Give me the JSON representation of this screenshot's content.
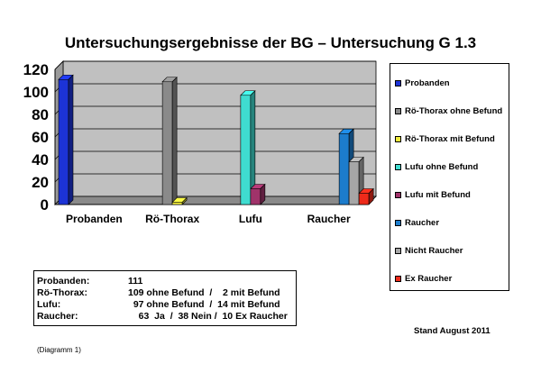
{
  "chart_data": {
    "type": "bar",
    "title": "Untersuchungsergebnisse der BG – Untersuchung G 1.3",
    "categories": [
      "Probanden",
      "Rö-Thorax",
      "Lufu",
      "Raucher"
    ],
    "ylim": [
      0,
      120
    ],
    "yticks": [
      "0",
      "20",
      "40",
      "60",
      "80",
      "100",
      "120"
    ],
    "grid": true,
    "legend_position": "right",
    "series": [
      {
        "name": "Probanden",
        "color": "#1c33d6",
        "category": 0,
        "value": 111
      },
      {
        "name": "Rö-Thorax ohne Befund",
        "color": "#8a8a8a",
        "category": 1,
        "value": 109
      },
      {
        "name": "Rö-Thorax mit Befund",
        "color": "#f1ec3c",
        "category": 1,
        "value": 2
      },
      {
        "name": "Lufu ohne Befund",
        "color": "#3fdcd0",
        "category": 2,
        "value": 97
      },
      {
        "name": "Lufu mit Befund",
        "color": "#a0336a",
        "category": 2,
        "value": 14
      },
      {
        "name": "Raucher",
        "color": "#1c7ccc",
        "category": 3,
        "value": 63
      },
      {
        "name": "Nicht Raucher",
        "color": "#a6a6a6",
        "category": 3,
        "value": 38
      },
      {
        "name": "Ex Raucher",
        "color": "#ee2a1a",
        "category": 3,
        "value": 10
      }
    ]
  },
  "info_box": {
    "rows": [
      {
        "label": "Probanden:",
        "value": "111"
      },
      {
        "label": "Rö-Thorax:",
        "value": "109 ohne Befund  /    2 mit Befund"
      },
      {
        "label": "Lufu:",
        "value": "  97 ohne Befund  /  14 mit Befund"
      },
      {
        "label": "Raucher:",
        "value": "    63  Ja  /  38 Nein /  10 Ex Raucher"
      }
    ]
  },
  "stand": "Stand August 2011",
  "caption": "(Diagramm 1)"
}
